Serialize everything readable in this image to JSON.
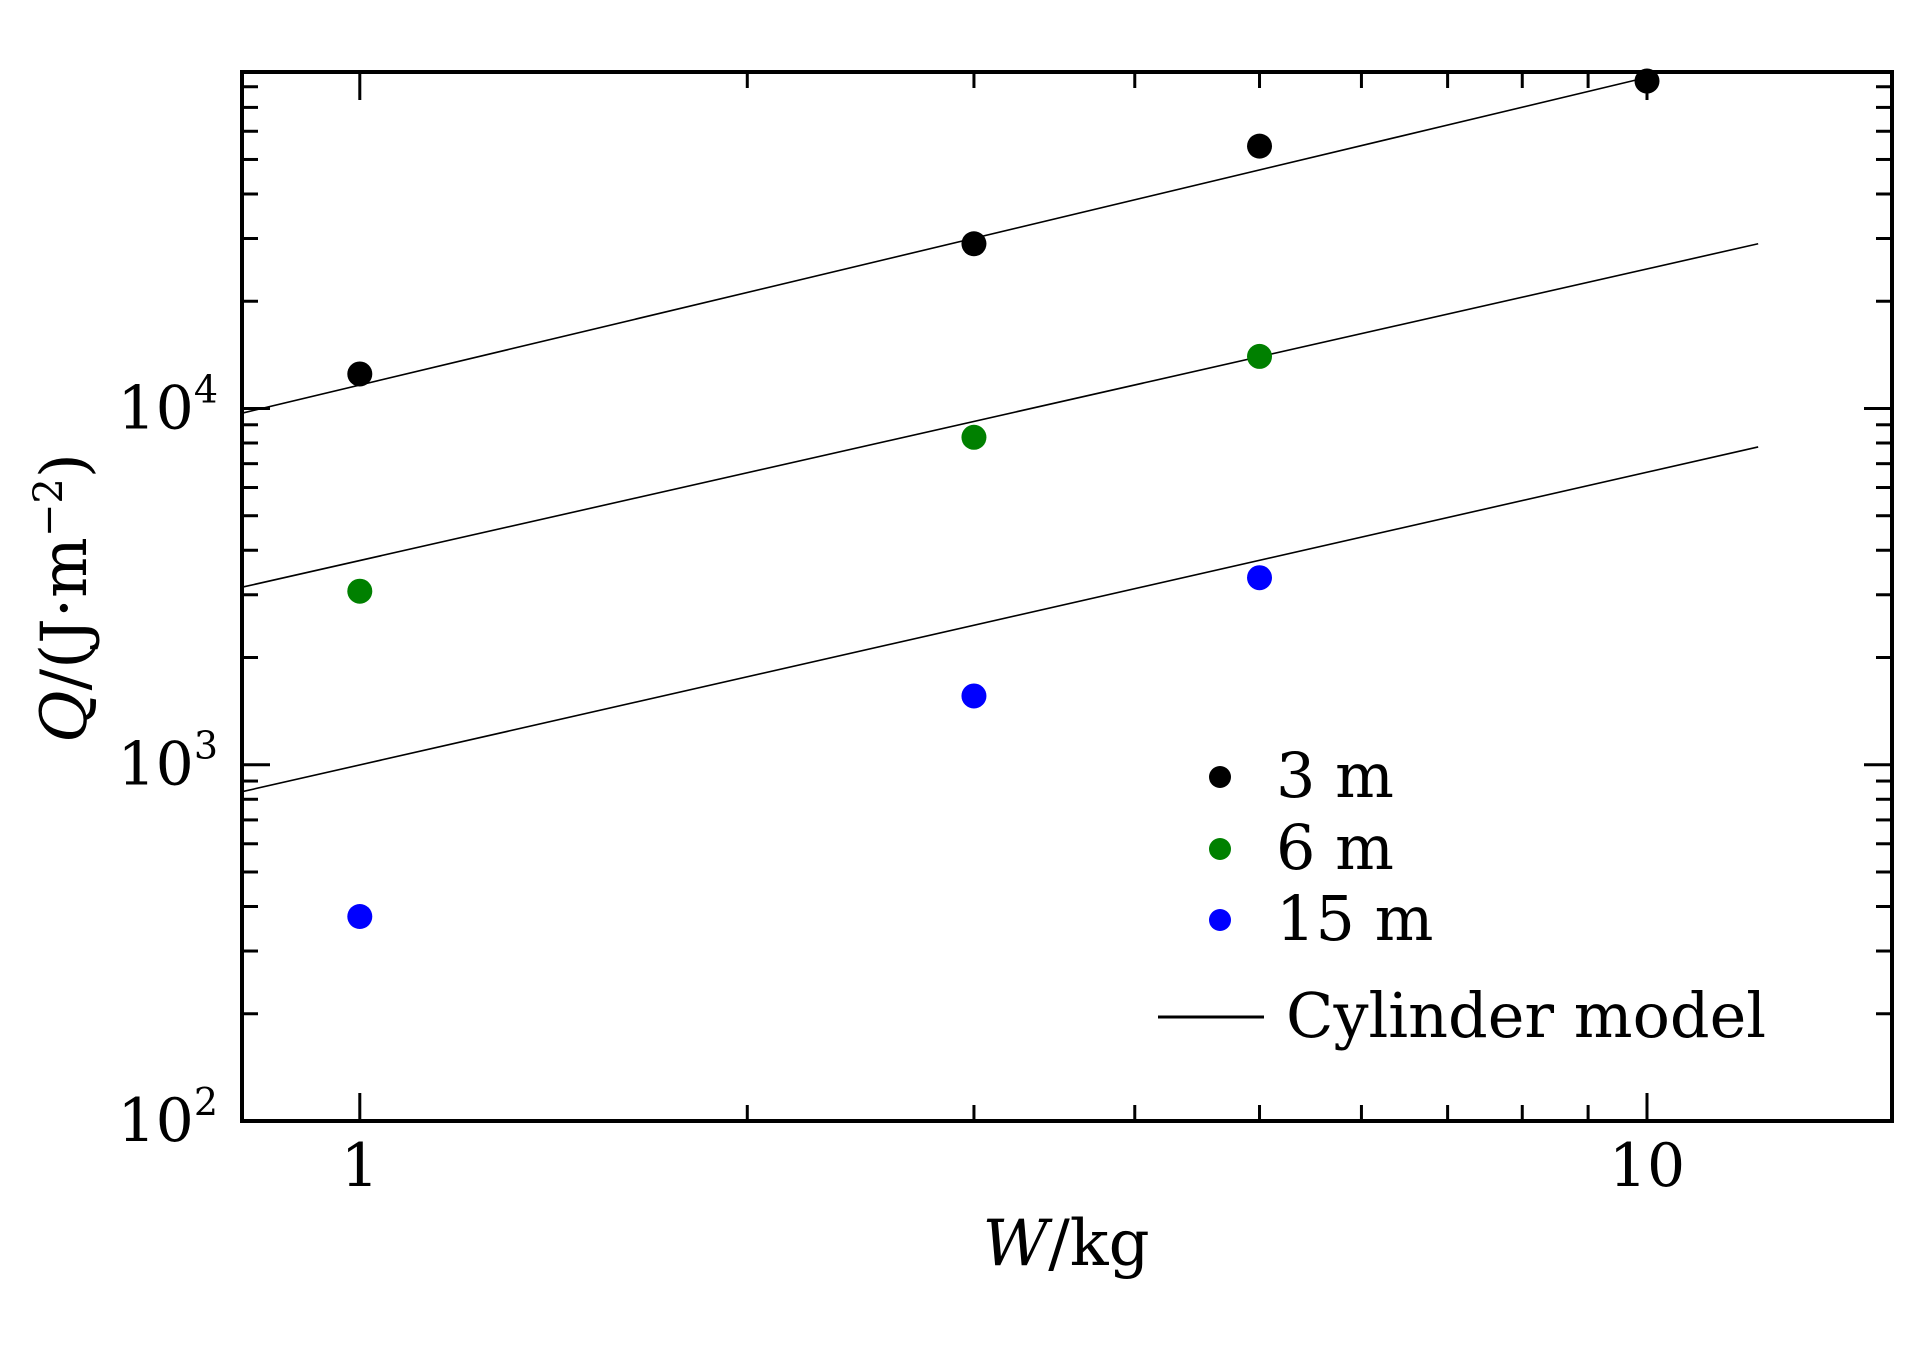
{
  "chart_data": {
    "type": "scatter",
    "x_scale": "log",
    "y_scale": "log",
    "xlim": [
      0.81,
      15.5
    ],
    "ylim": [
      100,
      88000
    ],
    "xlabel": {
      "italic": "W",
      "rest": "/kg"
    },
    "ylabel": {
      "italic": "Q",
      "rest": "/(J·m",
      "sup": "−2",
      "close": ")"
    },
    "x_ticks": [
      {
        "value": 1,
        "label": "1"
      },
      {
        "value": 10,
        "label": "10"
      }
    ],
    "y_ticks": [
      {
        "value": 100,
        "base": "10",
        "exp": "2"
      },
      {
        "value": 1000,
        "base": "10",
        "exp": "3"
      },
      {
        "value": 10000,
        "base": "10",
        "exp": "4"
      }
    ],
    "series": [
      {
        "name": "3 m",
        "color": "#000000",
        "x": [
          1,
          3,
          5,
          10
        ],
        "y": [
          12500,
          29000,
          54500,
          83000
        ]
      },
      {
        "name": "6 m",
        "color": "#008000",
        "x": [
          1,
          3,
          5
        ],
        "y": [
          3070,
          8300,
          14000
        ]
      },
      {
        "name": "15 m",
        "color": "#0000ff",
        "x": [
          1,
          3,
          5
        ],
        "y": [
          375,
          1560,
          3350
        ]
      }
    ],
    "model": {
      "name": "Cylinder model",
      "color": "#000000",
      "lines": [
        {
          "x": [
            0.81,
            10
          ],
          "y": [
            9700,
            85000
          ]
        },
        {
          "x": [
            0.81,
            12.2
          ],
          "y": [
            3150,
            29000
          ]
        },
        {
          "x": [
            0.81,
            12.2
          ],
          "y": [
            840,
            7800
          ]
        }
      ]
    },
    "legend_position": "lower-right",
    "grid": false
  }
}
